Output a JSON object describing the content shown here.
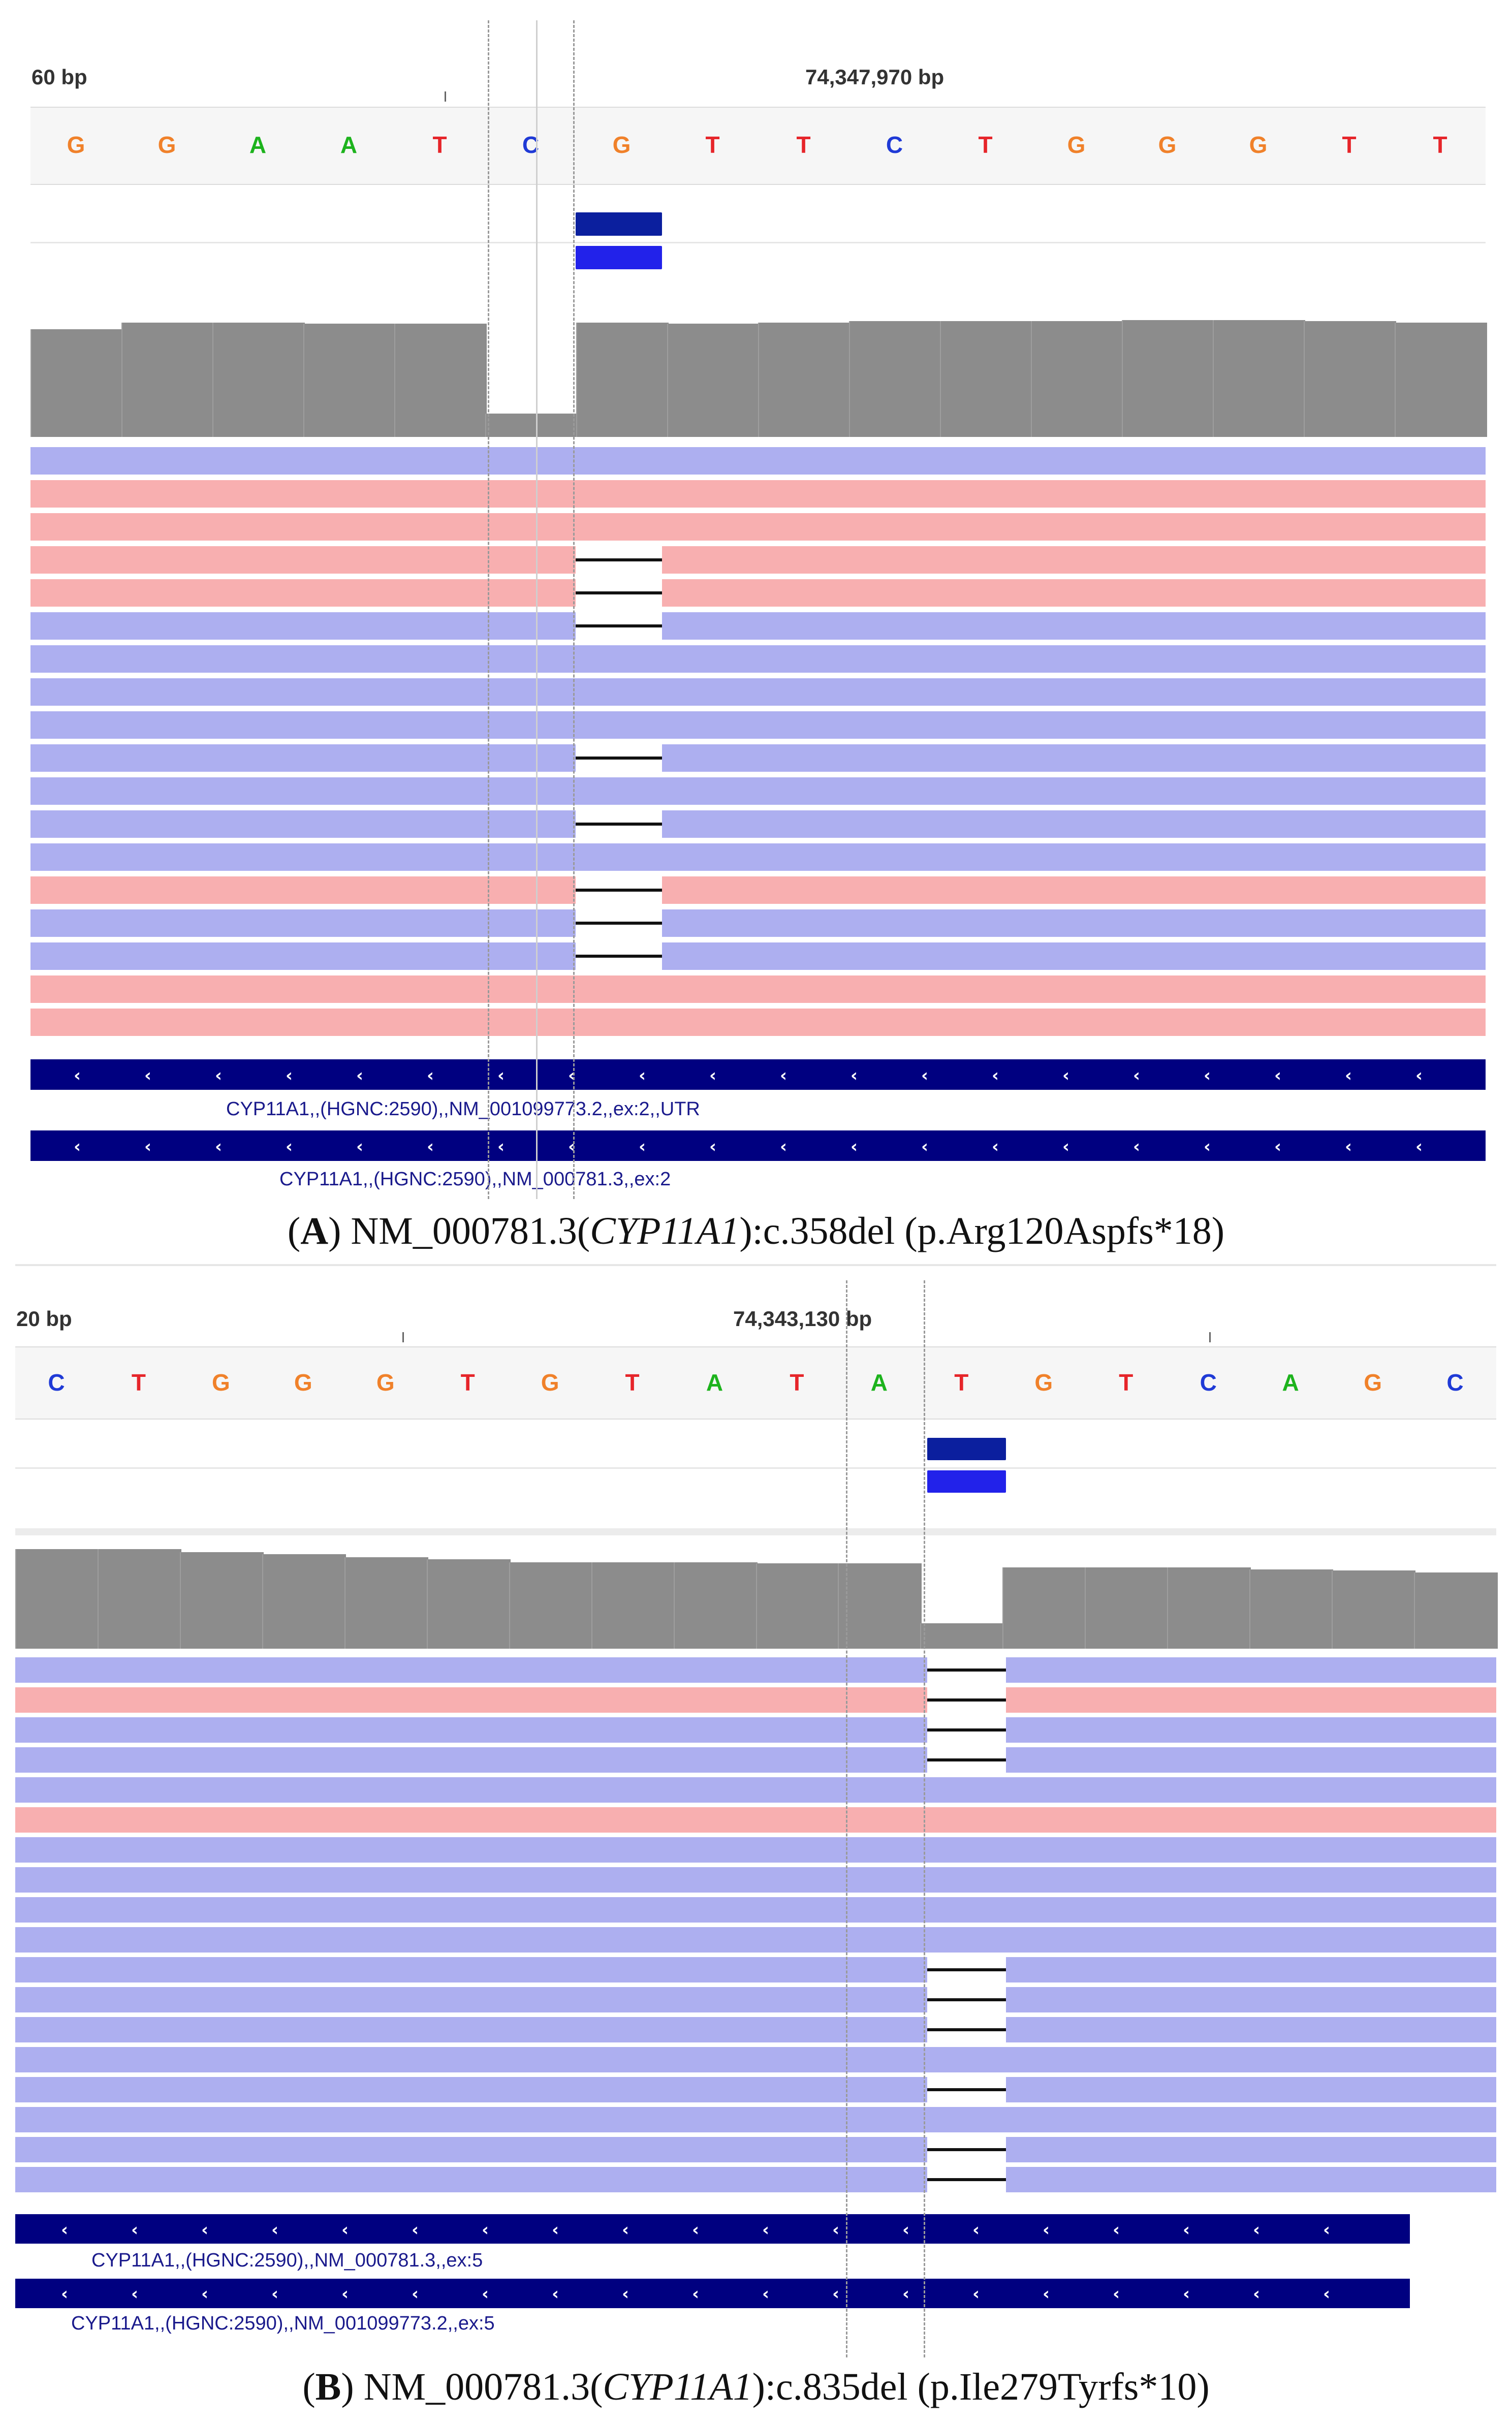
{
  "colors": {
    "A": "#1db31d",
    "C": "#1f3ad6",
    "G": "#f0812a",
    "T": "#e6252a",
    "coverage": "#8c8c8c",
    "read_forward": "#adaff0",
    "read_reverse": "#f8afb0",
    "gene": "#000080",
    "feature_dark": "#0b1f9e",
    "feature_light": "#2222ea"
  },
  "panels": [
    {
      "id": "A",
      "ruler": {
        "left_label": "60 bp",
        "center_label": "74,347,970 bp"
      },
      "sequence": [
        "G",
        "G",
        "A",
        "A",
        "T",
        "C",
        "G",
        "T",
        "T",
        "C",
        "T",
        "G",
        "G",
        "G",
        "T",
        "T"
      ],
      "reads": [
        "f",
        "r",
        "r",
        "r",
        "r",
        "f",
        "f",
        "f",
        "f",
        "f",
        "f",
        "f",
        "f",
        "r",
        "f",
        "f",
        "r",
        "r"
      ],
      "deletion_rows": [
        3,
        4,
        5,
        9,
        11,
        13,
        14,
        15
      ],
      "coverage_profile": [
        0.92,
        0.98,
        0.98,
        0.97,
        0.97,
        0.2,
        0.98,
        0.97,
        0.98,
        0.99,
        0.99,
        0.99,
        1.0,
        1.0,
        0.99,
        0.98
      ],
      "genes": [
        {
          "label": "CYP11A1,,(HGNC:2590),,NM_001099773.2,,ex:2,,UTR"
        },
        {
          "label": "CYP11A1,,(HGNC:2590),,NM_000781.3,,ex:2"
        }
      ],
      "caption": {
        "letter": "A",
        "pre": ") NM_000781.3(",
        "gene": "CYP11A1",
        "post": "):c.358del (p.Arg120Aspfs*18)"
      }
    },
    {
      "id": "B",
      "ruler": {
        "left_label": "20 bp",
        "center_label": "74,343,130 bp"
      },
      "sequence": [
        "C",
        "T",
        "G",
        "G",
        "G",
        "T",
        "G",
        "T",
        "A",
        "T",
        "A",
        "T",
        "G",
        "T",
        "C",
        "A",
        "G",
        "C"
      ],
      "reads": [
        "f",
        "r",
        "f",
        "f",
        "f",
        "r",
        "f",
        "f",
        "f",
        "f",
        "f",
        "f",
        "f",
        "f",
        "f",
        "f",
        "f",
        "f"
      ],
      "deletion_rows": [
        0,
        1,
        2,
        3,
        10,
        11,
        12,
        14,
        16,
        17
      ],
      "coverage_profile": [
        0.98,
        0.98,
        0.95,
        0.93,
        0.9,
        0.88,
        0.85,
        0.85,
        0.85,
        0.84,
        0.84,
        0.25,
        0.8,
        0.8,
        0.8,
        0.78,
        0.77,
        0.75
      ],
      "genes": [
        {
          "label": "CYP11A1,,(HGNC:2590),,NM_000781.3,,ex:5"
        },
        {
          "label": "CYP11A1,,(HGNC:2590),,NM_001099773.2,,ex:5"
        }
      ],
      "caption": {
        "letter": "B",
        "pre": ") NM_000781.3(",
        "gene": "CYP11A1",
        "post": "):c.835del (p.Ile279Tyrfs*10)"
      }
    }
  ]
}
